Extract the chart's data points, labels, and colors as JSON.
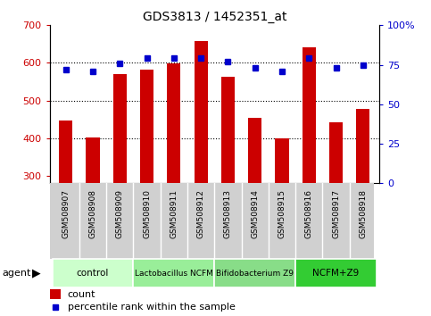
{
  "title": "GDS3813 / 1452351_at",
  "samples": [
    "GSM508907",
    "GSM508908",
    "GSM508909",
    "GSM508910",
    "GSM508911",
    "GSM508912",
    "GSM508913",
    "GSM508914",
    "GSM508915",
    "GSM508916",
    "GSM508917",
    "GSM508918"
  ],
  "counts": [
    447,
    402,
    570,
    581,
    598,
    657,
    562,
    453,
    400,
    641,
    443,
    477
  ],
  "percentiles": [
    72,
    71,
    76,
    79,
    79,
    79,
    77,
    73,
    71,
    79,
    73,
    75
  ],
  "bar_color": "#cc0000",
  "dot_color": "#0000cc",
  "ylim_left": [
    280,
    700
  ],
  "ylim_right": [
    0,
    100
  ],
  "yticks_left": [
    300,
    400,
    500,
    600,
    700
  ],
  "yticks_right": [
    0,
    25,
    50,
    75,
    100
  ],
  "groups": [
    {
      "label": "control",
      "start": 0,
      "end": 3,
      "color": "#ccffcc"
    },
    {
      "label": "Lactobacillus NCFM",
      "start": 3,
      "end": 6,
      "color": "#99ee99"
    },
    {
      "label": "Bifidobacterium Z9",
      "start": 6,
      "end": 9,
      "color": "#88dd88"
    },
    {
      "label": "NCFM+Z9",
      "start": 9,
      "end": 12,
      "color": "#33cc33"
    }
  ],
  "tick_area_color": "#d0d0d0",
  "bar_width": 0.5,
  "figsize": [
    4.83,
    3.54
  ],
  "dpi": 100
}
